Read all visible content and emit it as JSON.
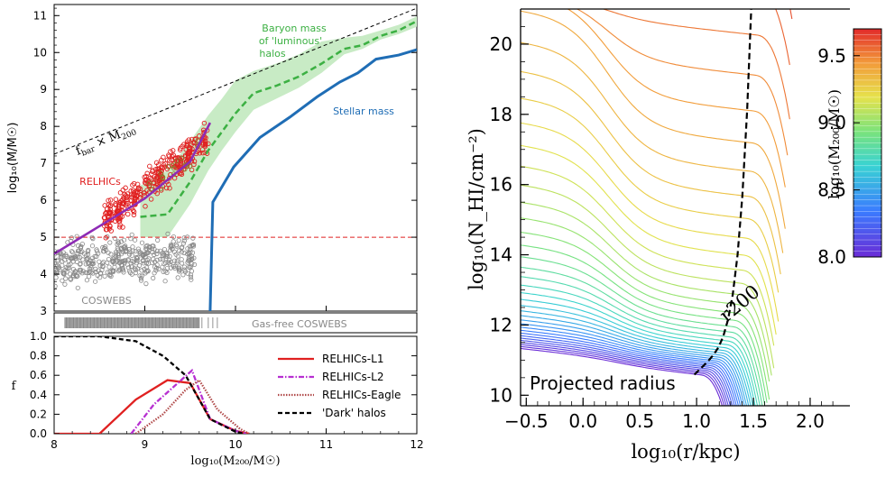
{
  "chart_data": [
    {
      "type": "line",
      "panel": "left-top",
      "xlim": [
        8,
        12
      ],
      "ylim": [
        3,
        11.3
      ],
      "yticks": [
        "3",
        "4",
        "5",
        "6",
        "7",
        "8",
        "9",
        "10",
        "11"
      ],
      "ylabel": "log₁₀(M/M☉)",
      "annotations": {
        "fbar": "f",
        "fbar_sub": "bar",
        "fbar_rest": " × M",
        "fbar_sub2": "200",
        "baryon": [
          "Baryon mass",
          "of 'luminous'",
          "halos"
        ],
        "stellar": "Stellar mass",
        "relhics": "RELHICs",
        "cowebs": "COSWEBS",
        "gasfree": "Gas-free COSWEBS"
      },
      "colors": {
        "stellar": "#1f6db5",
        "baryon": "#3cb043",
        "baryon_band": "#c8ebc5",
        "relhics": "#e02020",
        "fit": "#8e2bb5",
        "cowebs": "#888888",
        "ref": "#e02020"
      },
      "series": [
        {
          "name": "fbar_line",
          "x": [
            8,
            12
          ],
          "y": [
            7.25,
            11.2
          ]
        },
        {
          "name": "stellar",
          "x": [
            9.72,
            9.75,
            9.98,
            10.27,
            10.6,
            10.9,
            11.15,
            11.35,
            11.55,
            11.8,
            12.0
          ],
          "y": [
            3.0,
            5.95,
            6.9,
            7.7,
            8.25,
            8.8,
            9.2,
            9.45,
            9.82,
            9.93,
            10.08
          ]
        },
        {
          "name": "baryon",
          "x": [
            8.95,
            9.25,
            9.5,
            9.7,
            9.85,
            10.0,
            10.2,
            10.45,
            10.7,
            10.95,
            11.2,
            11.4,
            11.6,
            11.8,
            12.0
          ],
          "y": [
            5.55,
            5.62,
            6.5,
            7.35,
            7.85,
            8.35,
            8.9,
            9.1,
            9.35,
            9.7,
            10.1,
            10.2,
            10.45,
            10.6,
            10.85
          ]
        },
        {
          "name": "band_upper",
          "x": [
            8.95,
            9.25,
            9.5,
            9.7,
            9.85,
            10.0,
            10.2,
            10.45,
            10.7,
            10.95,
            11.2,
            11.4,
            11.6,
            11.8,
            12.0
          ],
          "y": [
            6.4,
            6.8,
            7.6,
            8.3,
            8.75,
            9.25,
            9.5,
            9.7,
            9.95,
            10.3,
            10.4,
            10.45,
            10.6,
            10.75,
            10.98
          ]
        },
        {
          "name": "band_lower",
          "x": [
            8.95,
            9.25,
            9.5,
            9.7,
            9.85,
            10.0,
            10.2,
            10.45,
            10.7,
            10.95,
            11.2,
            11.4,
            11.6,
            11.8,
            12.0
          ],
          "y": [
            5.0,
            5.0,
            5.9,
            6.8,
            7.35,
            7.85,
            8.45,
            8.75,
            9.05,
            9.45,
            9.95,
            10.1,
            10.35,
            10.5,
            10.7
          ]
        },
        {
          "name": "relhics_fit",
          "x": [
            8.0,
            8.5,
            9.0,
            9.5,
            9.72
          ],
          "y": [
            4.55,
            5.3,
            6.05,
            7.05,
            8.1
          ]
        },
        {
          "name": "ref_line",
          "x": [
            8,
            12
          ],
          "y": [
            5.0,
            5.0
          ]
        }
      ]
    },
    {
      "type": "line",
      "panel": "left-bottom",
      "xlim": [
        8,
        12
      ],
      "ylim": [
        0,
        1
      ],
      "xticks": [
        "8",
        "9",
        "10",
        "11",
        "12"
      ],
      "yticks": [
        "0.0",
        "0.2",
        "0.4",
        "0.6",
        "0.8",
        "1.0"
      ],
      "ylabel": "f",
      "xlabel": "log₁₀(M₂₀₀/M☉)",
      "legend": [
        "RELHICs-L1",
        "RELHICs-L2",
        "RELHICs-Eagle",
        "'Dark' halos"
      ],
      "series": [
        {
          "name": "RELHICs-L1",
          "color": "#e02020",
          "x": [
            8.0,
            8.5,
            8.9,
            9.25,
            9.5,
            9.72,
            10.0,
            10.15
          ],
          "y": [
            0.0,
            0.0,
            0.35,
            0.55,
            0.52,
            0.15,
            0.03,
            0.0
          ]
        },
        {
          "name": "RELHICs-L2",
          "color": "#b72fd1",
          "x": [
            8.85,
            9.1,
            9.4,
            9.52,
            9.72,
            10.0,
            10.12
          ],
          "y": [
            0.0,
            0.3,
            0.55,
            0.65,
            0.15,
            0.03,
            0.0
          ]
        },
        {
          "name": "RELHICs-Eagle",
          "color": "#b04a4a",
          "x": [
            8.9,
            9.2,
            9.45,
            9.6,
            9.8,
            10.05,
            10.15
          ],
          "y": [
            0.0,
            0.2,
            0.45,
            0.55,
            0.25,
            0.05,
            0.0
          ]
        },
        {
          "name": "'Dark' halos",
          "color": "#000000",
          "x": [
            8.0,
            8.5,
            8.9,
            9.2,
            9.45,
            9.72,
            10.0,
            10.1
          ],
          "y": [
            1.0,
            1.0,
            0.95,
            0.8,
            0.6,
            0.15,
            0.02,
            0.0
          ]
        }
      ]
    },
    {
      "type": "line",
      "panel": "right",
      "xlim": [
        -0.55,
        2.35
      ],
      "ylim": [
        9.7,
        21.0
      ],
      "xticks": [
        "−0.5",
        "0.0",
        "0.5",
        "1.0",
        "1.5",
        "2.0"
      ],
      "yticks": [
        "10",
        "12",
        "14",
        "16",
        "18",
        "20"
      ],
      "xlabel": "log₁₀(r/kpc)",
      "ylabel": "log₁₀(N_HI/cm⁻²)",
      "annotation": "Projected radius",
      "r200_label": "r200",
      "colorbar_label": "log₁₀(M₂₀₀/M☉)",
      "colorbar_ticks": [
        "8.0",
        "8.5",
        "9.0",
        "9.5"
      ],
      "colorbar_range": [
        8.0,
        9.7
      ],
      "n_curves": 40
    }
  ]
}
